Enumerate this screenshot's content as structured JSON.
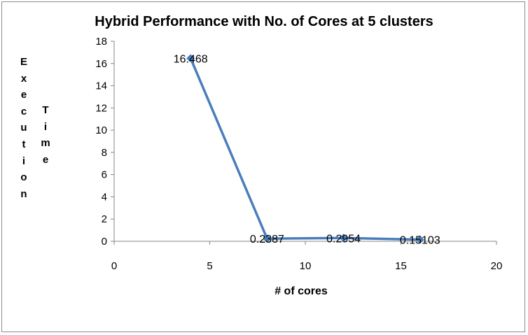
{
  "chart_data": {
    "type": "line",
    "title": "Hybrid Performance with No. of Cores at 5 clusters",
    "xlabel": "# of cores",
    "ylabel_words": [
      "Execution",
      "Time"
    ],
    "xlim": [
      0,
      20
    ],
    "ylim": [
      0,
      18
    ],
    "x_ticks": [
      0,
      5,
      10,
      15,
      20
    ],
    "y_ticks": [
      0,
      2,
      4,
      6,
      8,
      10,
      12,
      14,
      16,
      18
    ],
    "grid": false,
    "legend": "none",
    "series": [
      {
        "x": [
          4,
          8,
          12,
          16
        ],
        "y": [
          16.468,
          0.2387,
          0.2954,
          0.15103
        ],
        "labels": [
          "16.468",
          "0.2387",
          "0.2954",
          "0.15103"
        ],
        "color": "#4a7ebb"
      }
    ]
  }
}
